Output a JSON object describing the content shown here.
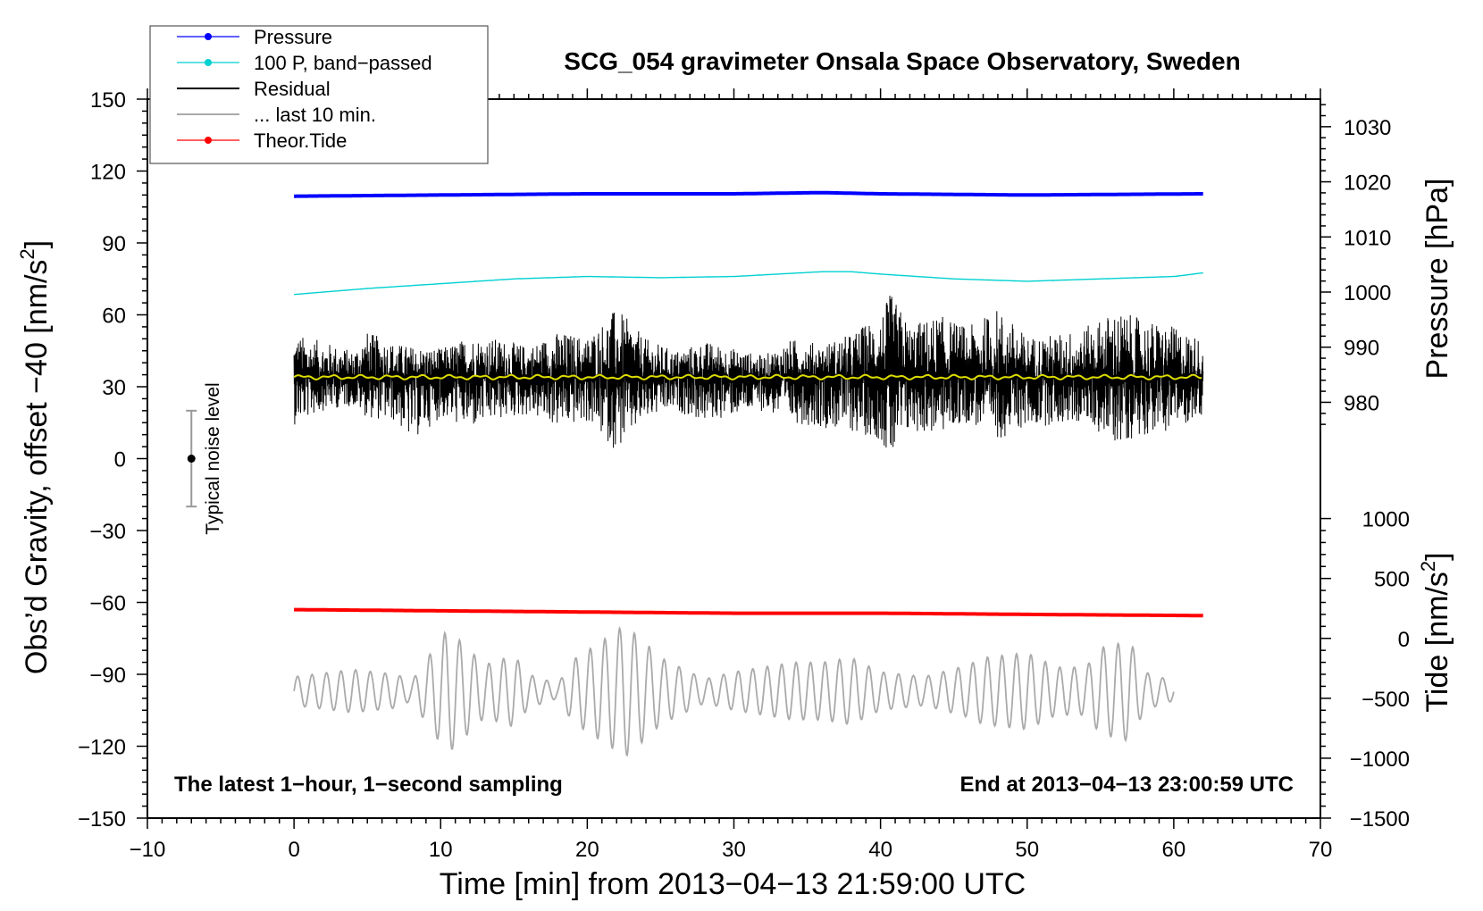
{
  "chart_data": {
    "type": "line",
    "title": "SCG_054 gravimeter Onsala Space Observatory, Sweden",
    "xlabel": "Time [min] from 2013−04−13 21:59:00 UTC",
    "ylabel_left": "Obs’d Gravity, offset −40 [nm/s",
    "ylabel_left_sup": "2",
    "ylabel_left_tail": "]",
    "ylabel_right_pressure": "Pressure [hPa]",
    "ylabel_right_tide": "Tide [nm/s",
    "ylabel_right_tide_sup": "2",
    "ylabel_right_tide_tail": "]",
    "xlim": [
      -10,
      70
    ],
    "ylim": [
      -150,
      150
    ],
    "x_ticks": [
      -10,
      0,
      10,
      20,
      30,
      40,
      50,
      60,
      70
    ],
    "x_tick_labels": [
      "−10",
      "0",
      "10",
      "20",
      "30",
      "40",
      "50",
      "60",
      "70"
    ],
    "y_ticks": [
      150,
      120,
      90,
      60,
      30,
      0,
      -30,
      -60,
      -90,
      -120,
      -150
    ],
    "y_tick_labels": [
      "150",
      "120",
      "90",
      "60",
      "30",
      "0",
      "−30",
      "−60",
      "−90",
      "−120",
      "−150"
    ],
    "pressure_axis": {
      "ticks": [
        1030,
        1020,
        1010,
        1000,
        990,
        980
      ],
      "tick_labels": [
        "1030",
        "1020",
        "1010",
        "1000",
        "990",
        "980"
      ],
      "gravity_at_1030": 138.5,
      "gravity_per_hpa": 2.3
    },
    "tide_axis": {
      "ticks": [
        1000,
        500,
        0,
        -500,
        -1000,
        -1500
      ],
      "tick_labels": [
        "1000",
        "500",
        "0",
        "−500",
        "−1000",
        "−1500"
      ],
      "gravity_at_0": -75,
      "gravity_per_unit": 0.05
    },
    "legend": {
      "position": "top-left",
      "entries": [
        {
          "label": "Pressure",
          "color": "#0000ff",
          "marker": true
        },
        {
          "label": "100 P, band−passed",
          "color": "#00d0d0",
          "marker": true
        },
        {
          "label": "Residual",
          "color": "#000000",
          "marker": false
        },
        {
          "label": "... last 10 min.",
          "color": "#aaaaaa",
          "marker": false
        },
        {
          "label": "Theor.Tide",
          "color": "#ff0000",
          "marker": true
        }
      ]
    },
    "annotations": {
      "left": "The latest 1−hour, 1−second sampling",
      "right": "End at 2013−04−13 23:00:59 UTC"
    },
    "noise_bar": {
      "label": "Typical noise level",
      "x": -7,
      "center": 0,
      "half_range": 20
    },
    "series": [
      {
        "name": "Pressure",
        "color": "#0000ff",
        "x": [
          0,
          10,
          20,
          30,
          36,
          40,
          50,
          62
        ],
        "y": [
          109.5,
          110,
          110.5,
          110.5,
          111,
          110.5,
          110,
          110.5
        ]
      },
      {
        "name": "100 P, band−passed",
        "color": "#00d0d0",
        "x": [
          0,
          5,
          10,
          15,
          20,
          25,
          30,
          33,
          36,
          38,
          40,
          45,
          50,
          55,
          60,
          62
        ],
        "y": [
          68.5,
          71,
          73,
          75,
          76,
          75.5,
          76,
          77,
          78,
          78,
          77,
          75,
          74,
          75,
          76,
          77.5
        ]
      },
      {
        "name": "Theor.Tide",
        "color": "#ff0000",
        "x": [
          0,
          10,
          20,
          30,
          40,
          50,
          62
        ],
        "y": [
          -63,
          -63.5,
          -64,
          -64.5,
          -64.5,
          -65,
          -65.5
        ]
      }
    ],
    "residual": {
      "color": "#000000",
      "mean_color": "#dddd00",
      "x_start": 0,
      "x_end": 62,
      "mean": 34,
      "envelope": {
        "x": [
          0,
          2,
          4,
          5,
          7,
          8,
          10,
          12,
          14,
          16,
          18,
          20,
          22,
          24,
          26,
          28,
          30,
          32,
          34,
          36,
          38,
          40,
          40.7,
          42,
          44,
          46,
          48,
          50,
          52,
          54,
          56,
          58,
          60,
          62
        ],
        "upper": [
          52,
          49,
          45,
          53,
          48,
          47,
          46,
          51,
          50,
          47,
          53,
          51,
          63,
          50,
          45,
          49,
          46,
          43,
          50,
          48,
          52,
          61,
          69,
          56,
          60,
          55,
          63,
          51,
          52,
          55,
          62,
          58,
          55,
          50
        ],
        "lower": [
          14,
          20,
          22,
          17,
          15,
          7,
          17,
          12,
          16,
          18,
          13,
          15,
          3,
          16,
          20,
          15,
          18,
          20,
          15,
          13,
          11,
          8,
          -3,
          11,
          10,
          15,
          8,
          13,
          14,
          15,
          6,
          10,
          12,
          18
        ]
      }
    },
    "last_10_min": {
      "color": "#aaaaaa",
      "x_start": 0,
      "x_end": 60,
      "center": -97,
      "period_min": 1.0,
      "amplitude_envelope": {
        "x": [
          0,
          4,
          7,
          8,
          10,
          10.5,
          12,
          13,
          15,
          16,
          18,
          19,
          20,
          22,
          22.5,
          24,
          25,
          28,
          30,
          32,
          34,
          36,
          38,
          40,
          43,
          46,
          47,
          50,
          52,
          54,
          55,
          57,
          58,
          60
        ],
        "amp": [
          6,
          9,
          7,
          4,
          22,
          26,
          17,
          11,
          15,
          7,
          3,
          13,
          17,
          25,
          28,
          20,
          14,
          5,
          8,
          10,
          12,
          12,
          14,
          8,
          6,
          11,
          14,
          16,
          10,
          10,
          18,
          21,
          8,
          4
        ]
      }
    }
  }
}
